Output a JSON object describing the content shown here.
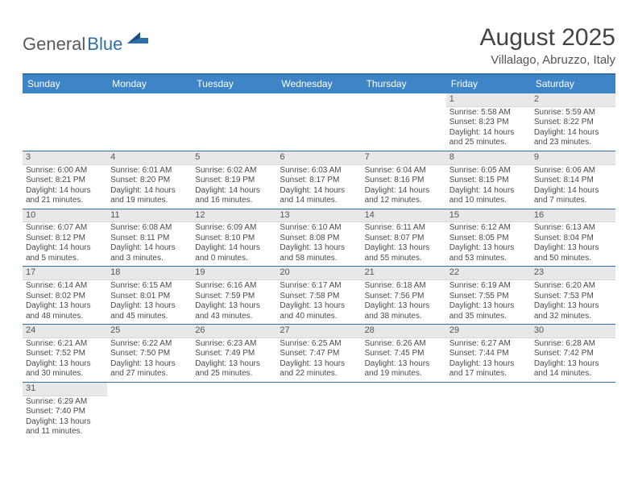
{
  "logo": {
    "general": "General",
    "blue": "Blue"
  },
  "title": "August 2025",
  "location": "Villalago, Abruzzo, Italy",
  "colors": {
    "header_bar": "#3d85c6",
    "border": "#2f6fa8",
    "day_bar": "#e8e8e8",
    "text": "#4a4a4a"
  },
  "weekdays": [
    "Sunday",
    "Monday",
    "Tuesday",
    "Wednesday",
    "Thursday",
    "Friday",
    "Saturday"
  ],
  "weeks": [
    [
      null,
      null,
      null,
      null,
      null,
      {
        "n": "1",
        "sr": "Sunrise: 5:58 AM",
        "ss": "Sunset: 8:23 PM",
        "d1": "Daylight: 14 hours",
        "d2": "and 25 minutes."
      },
      {
        "n": "2",
        "sr": "Sunrise: 5:59 AM",
        "ss": "Sunset: 8:22 PM",
        "d1": "Daylight: 14 hours",
        "d2": "and 23 minutes."
      }
    ],
    [
      {
        "n": "3",
        "sr": "Sunrise: 6:00 AM",
        "ss": "Sunset: 8:21 PM",
        "d1": "Daylight: 14 hours",
        "d2": "and 21 minutes."
      },
      {
        "n": "4",
        "sr": "Sunrise: 6:01 AM",
        "ss": "Sunset: 8:20 PM",
        "d1": "Daylight: 14 hours",
        "d2": "and 19 minutes."
      },
      {
        "n": "5",
        "sr": "Sunrise: 6:02 AM",
        "ss": "Sunset: 8:19 PM",
        "d1": "Daylight: 14 hours",
        "d2": "and 16 minutes."
      },
      {
        "n": "6",
        "sr": "Sunrise: 6:03 AM",
        "ss": "Sunset: 8:17 PM",
        "d1": "Daylight: 14 hours",
        "d2": "and 14 minutes."
      },
      {
        "n": "7",
        "sr": "Sunrise: 6:04 AM",
        "ss": "Sunset: 8:16 PM",
        "d1": "Daylight: 14 hours",
        "d2": "and 12 minutes."
      },
      {
        "n": "8",
        "sr": "Sunrise: 6:05 AM",
        "ss": "Sunset: 8:15 PM",
        "d1": "Daylight: 14 hours",
        "d2": "and 10 minutes."
      },
      {
        "n": "9",
        "sr": "Sunrise: 6:06 AM",
        "ss": "Sunset: 8:14 PM",
        "d1": "Daylight: 14 hours",
        "d2": "and 7 minutes."
      }
    ],
    [
      {
        "n": "10",
        "sr": "Sunrise: 6:07 AM",
        "ss": "Sunset: 8:12 PM",
        "d1": "Daylight: 14 hours",
        "d2": "and 5 minutes."
      },
      {
        "n": "11",
        "sr": "Sunrise: 6:08 AM",
        "ss": "Sunset: 8:11 PM",
        "d1": "Daylight: 14 hours",
        "d2": "and 3 minutes."
      },
      {
        "n": "12",
        "sr": "Sunrise: 6:09 AM",
        "ss": "Sunset: 8:10 PM",
        "d1": "Daylight: 14 hours",
        "d2": "and 0 minutes."
      },
      {
        "n": "13",
        "sr": "Sunrise: 6:10 AM",
        "ss": "Sunset: 8:08 PM",
        "d1": "Daylight: 13 hours",
        "d2": "and 58 minutes."
      },
      {
        "n": "14",
        "sr": "Sunrise: 6:11 AM",
        "ss": "Sunset: 8:07 PM",
        "d1": "Daylight: 13 hours",
        "d2": "and 55 minutes."
      },
      {
        "n": "15",
        "sr": "Sunrise: 6:12 AM",
        "ss": "Sunset: 8:05 PM",
        "d1": "Daylight: 13 hours",
        "d2": "and 53 minutes."
      },
      {
        "n": "16",
        "sr": "Sunrise: 6:13 AM",
        "ss": "Sunset: 8:04 PM",
        "d1": "Daylight: 13 hours",
        "d2": "and 50 minutes."
      }
    ],
    [
      {
        "n": "17",
        "sr": "Sunrise: 6:14 AM",
        "ss": "Sunset: 8:02 PM",
        "d1": "Daylight: 13 hours",
        "d2": "and 48 minutes."
      },
      {
        "n": "18",
        "sr": "Sunrise: 6:15 AM",
        "ss": "Sunset: 8:01 PM",
        "d1": "Daylight: 13 hours",
        "d2": "and 45 minutes."
      },
      {
        "n": "19",
        "sr": "Sunrise: 6:16 AM",
        "ss": "Sunset: 7:59 PM",
        "d1": "Daylight: 13 hours",
        "d2": "and 43 minutes."
      },
      {
        "n": "20",
        "sr": "Sunrise: 6:17 AM",
        "ss": "Sunset: 7:58 PM",
        "d1": "Daylight: 13 hours",
        "d2": "and 40 minutes."
      },
      {
        "n": "21",
        "sr": "Sunrise: 6:18 AM",
        "ss": "Sunset: 7:56 PM",
        "d1": "Daylight: 13 hours",
        "d2": "and 38 minutes."
      },
      {
        "n": "22",
        "sr": "Sunrise: 6:19 AM",
        "ss": "Sunset: 7:55 PM",
        "d1": "Daylight: 13 hours",
        "d2": "and 35 minutes."
      },
      {
        "n": "23",
        "sr": "Sunrise: 6:20 AM",
        "ss": "Sunset: 7:53 PM",
        "d1": "Daylight: 13 hours",
        "d2": "and 32 minutes."
      }
    ],
    [
      {
        "n": "24",
        "sr": "Sunrise: 6:21 AM",
        "ss": "Sunset: 7:52 PM",
        "d1": "Daylight: 13 hours",
        "d2": "and 30 minutes."
      },
      {
        "n": "25",
        "sr": "Sunrise: 6:22 AM",
        "ss": "Sunset: 7:50 PM",
        "d1": "Daylight: 13 hours",
        "d2": "and 27 minutes."
      },
      {
        "n": "26",
        "sr": "Sunrise: 6:23 AM",
        "ss": "Sunset: 7:49 PM",
        "d1": "Daylight: 13 hours",
        "d2": "and 25 minutes."
      },
      {
        "n": "27",
        "sr": "Sunrise: 6:25 AM",
        "ss": "Sunset: 7:47 PM",
        "d1": "Daylight: 13 hours",
        "d2": "and 22 minutes."
      },
      {
        "n": "28",
        "sr": "Sunrise: 6:26 AM",
        "ss": "Sunset: 7:45 PM",
        "d1": "Daylight: 13 hours",
        "d2": "and 19 minutes."
      },
      {
        "n": "29",
        "sr": "Sunrise: 6:27 AM",
        "ss": "Sunset: 7:44 PM",
        "d1": "Daylight: 13 hours",
        "d2": "and 17 minutes."
      },
      {
        "n": "30",
        "sr": "Sunrise: 6:28 AM",
        "ss": "Sunset: 7:42 PM",
        "d1": "Daylight: 13 hours",
        "d2": "and 14 minutes."
      }
    ],
    [
      {
        "n": "31",
        "sr": "Sunrise: 6:29 AM",
        "ss": "Sunset: 7:40 PM",
        "d1": "Daylight: 13 hours",
        "d2": "and 11 minutes."
      },
      null,
      null,
      null,
      null,
      null,
      null
    ]
  ]
}
